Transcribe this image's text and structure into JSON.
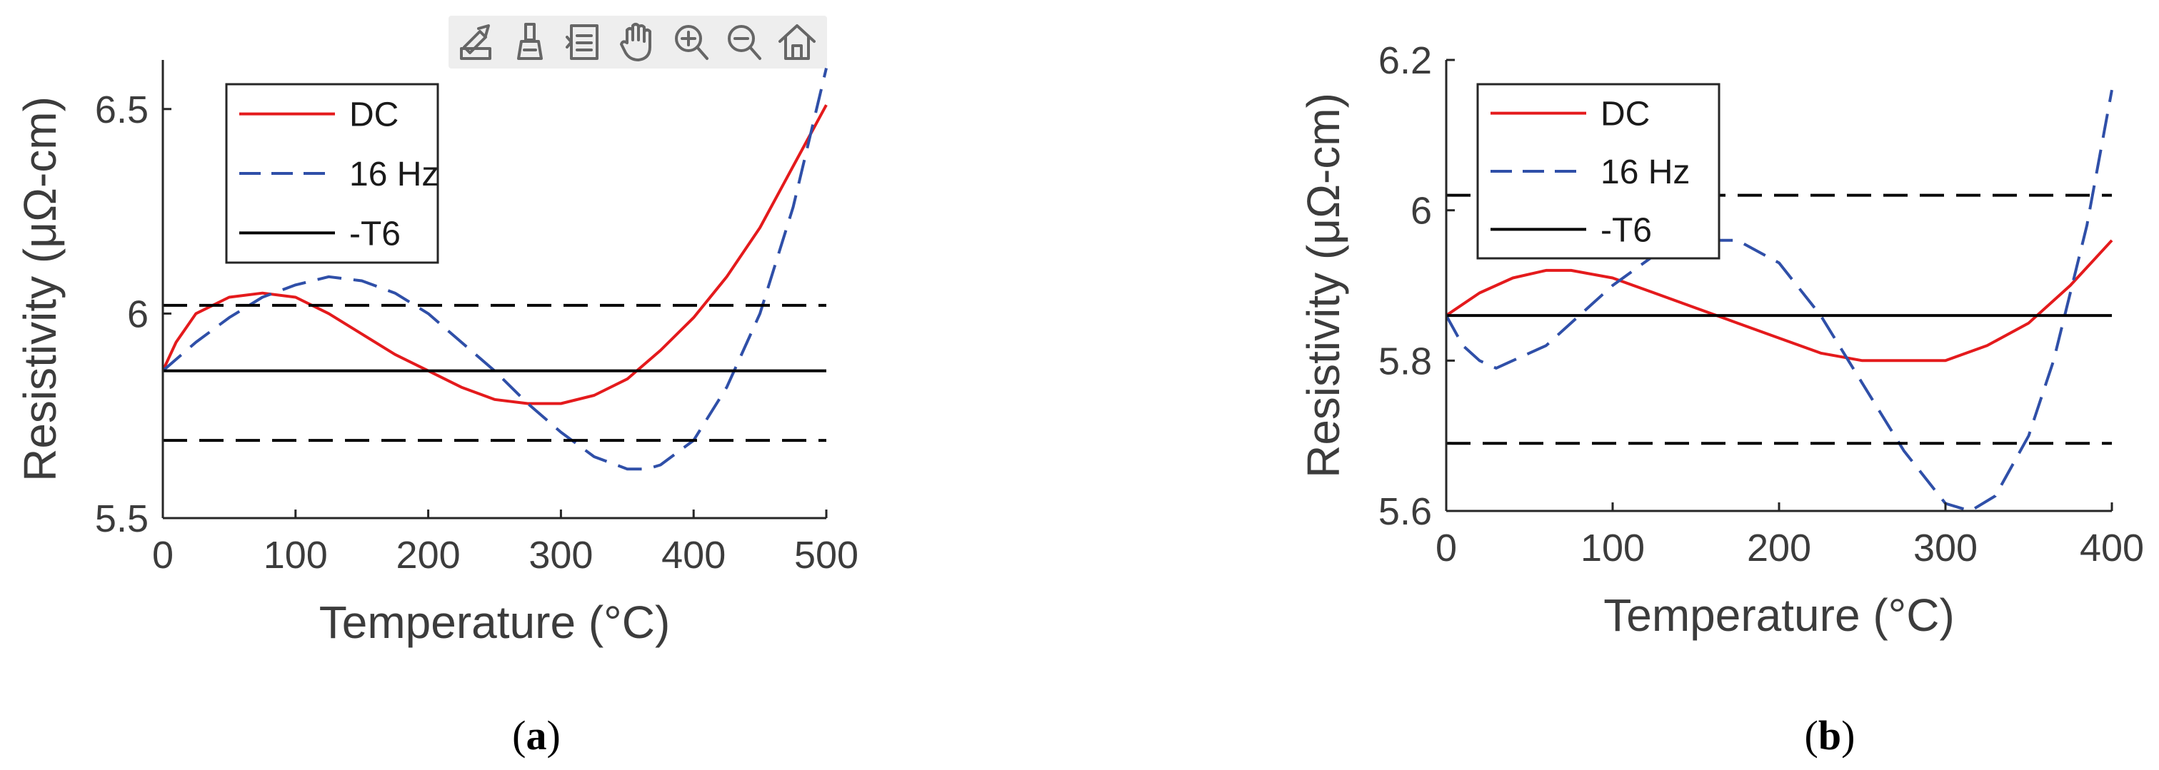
{
  "toolbar": {
    "icons": [
      "export-icon",
      "brush-icon",
      "legend-icon",
      "pan-hand-icon",
      "zoom-in-icon",
      "zoom-out-icon",
      "home-icon"
    ]
  },
  "chart_data": [
    {
      "type": "line",
      "panel_label_open": "(",
      "panel_label_letter": "a",
      "panel_label_close": ")",
      "xlabel": "Temperature (°C)",
      "ylabel": "Resistivity (μΩ-cm)",
      "xlim": [
        0,
        500
      ],
      "ylim": [
        5.5,
        6.62
      ],
      "xticks": [
        0,
        100,
        200,
        300,
        400,
        500
      ],
      "xtick_labels": [
        "0",
        "100",
        "200",
        "300",
        "400",
        "500"
      ],
      "yticks": [
        5.5,
        6.0,
        6.5
      ],
      "ytick_labels": [
        "5.5",
        "6",
        "6.5"
      ],
      "grid": false,
      "legend_position": "top-left",
      "series": [
        {
          "name": "DC",
          "color": "#e41a1c",
          "style": "solid",
          "x": [
            0,
            10,
            25,
            50,
            75,
            100,
            125,
            150,
            175,
            200,
            225,
            250,
            275,
            300,
            325,
            350,
            375,
            400,
            425,
            450,
            475,
            500
          ],
          "y": [
            5.86,
            5.93,
            6.0,
            6.04,
            6.05,
            6.04,
            6.0,
            5.95,
            5.9,
            5.86,
            5.82,
            5.79,
            5.78,
            5.78,
            5.8,
            5.84,
            5.91,
            5.99,
            6.09,
            6.21,
            6.36,
            6.51
          ]
        },
        {
          "name": "16 Hz",
          "color": "#2f4fa8",
          "style": "dashed",
          "x": [
            0,
            25,
            50,
            75,
            100,
            125,
            150,
            175,
            200,
            225,
            250,
            275,
            300,
            325,
            350,
            365,
            375,
            400,
            425,
            450,
            475,
            500
          ],
          "y": [
            5.86,
            5.93,
            5.99,
            6.04,
            6.07,
            6.09,
            6.08,
            6.05,
            6.0,
            5.93,
            5.86,
            5.78,
            5.71,
            5.65,
            5.62,
            5.62,
            5.63,
            5.69,
            5.82,
            6.0,
            6.26,
            6.6
          ]
        },
        {
          "name": "-T6",
          "color": "#000000",
          "style": "solid",
          "x": [
            0,
            500
          ],
          "y": [
            5.86,
            5.86
          ]
        },
        {
          "color": "#000000",
          "style": "dashed",
          "x": [
            0,
            500
          ],
          "y": [
            6.02,
            6.02
          ]
        },
        {
          "color": "#000000",
          "style": "dashed",
          "x": [
            0,
            500
          ],
          "y": [
            5.69,
            5.69
          ]
        }
      ]
    },
    {
      "type": "line",
      "panel_label_open": "(",
      "panel_label_letter": "b",
      "panel_label_close": ")",
      "xlabel": "Temperature (°C)",
      "ylabel": "Resistivity (μΩ-cm)",
      "xlim": [
        0,
        400
      ],
      "ylim": [
        5.6,
        6.2
      ],
      "xticks": [
        0,
        100,
        200,
        300,
        400
      ],
      "xtick_labels": [
        "0",
        "100",
        "200",
        "300",
        "400"
      ],
      "yticks": [
        5.6,
        5.8,
        6.0,
        6.2
      ],
      "ytick_labels": [
        "5.6",
        "5.8",
        "6",
        "6.2"
      ],
      "grid": false,
      "legend_position": "top-left",
      "series": [
        {
          "name": "DC",
          "color": "#e41a1c",
          "style": "solid",
          "x": [
            0,
            20,
            40,
            60,
            75,
            100,
            125,
            150,
            175,
            200,
            225,
            250,
            275,
            300,
            325,
            350,
            375,
            400
          ],
          "y": [
            5.86,
            5.89,
            5.91,
            5.92,
            5.92,
            5.91,
            5.89,
            5.87,
            5.85,
            5.83,
            5.81,
            5.8,
            5.8,
            5.8,
            5.82,
            5.85,
            5.9,
            5.96
          ]
        },
        {
          "name": "16 Hz",
          "color": "#2f4fa8",
          "style": "dashed",
          "x": [
            0,
            10,
            20,
            30,
            40,
            60,
            80,
            100,
            125,
            150,
            175,
            200,
            225,
            250,
            275,
            300,
            315,
            330,
            350,
            365,
            375,
            385,
            400
          ],
          "y": [
            5.86,
            5.82,
            5.8,
            5.79,
            5.8,
            5.82,
            5.86,
            5.9,
            5.94,
            5.96,
            5.96,
            5.93,
            5.86,
            5.77,
            5.68,
            5.61,
            5.6,
            5.62,
            5.7,
            5.8,
            5.89,
            5.98,
            6.16
          ]
        },
        {
          "name": "-T6",
          "color": "#000000",
          "style": "solid",
          "x": [
            0,
            400
          ],
          "y": [
            5.86,
            5.86
          ]
        },
        {
          "color": "#000000",
          "style": "dashed",
          "x": [
            0,
            400
          ],
          "y": [
            6.02,
            6.02
          ]
        },
        {
          "color": "#000000",
          "style": "dashed",
          "x": [
            0,
            400
          ],
          "y": [
            5.69,
            5.69
          ]
        }
      ]
    }
  ]
}
